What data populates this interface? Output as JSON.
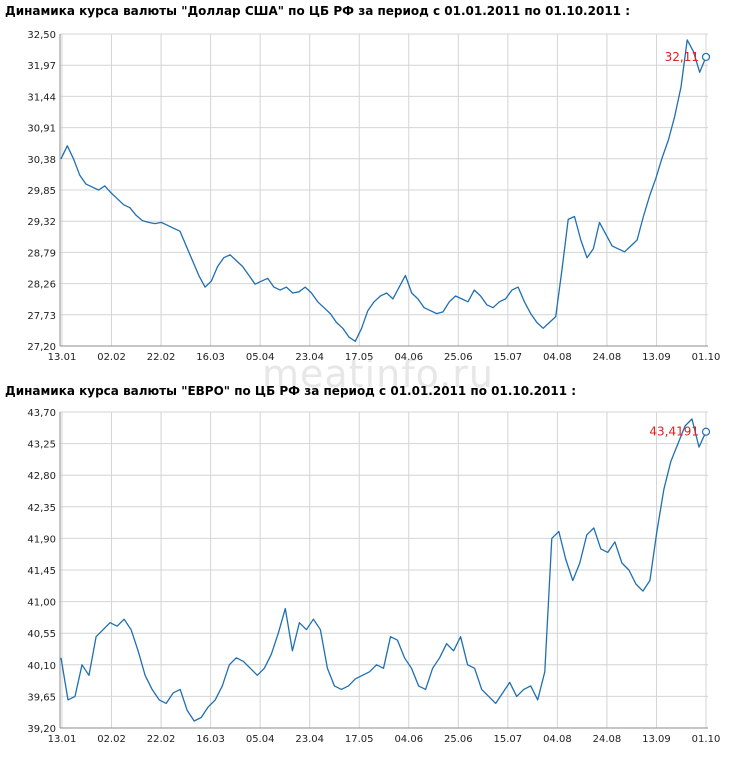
{
  "watermark": "meatinfo.ru",
  "colors": {
    "line": "#1f6fb2",
    "grid": "#d4d4d4",
    "axis": "#8c8c8c",
    "label": "#e02020"
  },
  "chart_data": [
    {
      "type": "line",
      "title": "Динамика курса валюты \"Доллар США\" по ЦБ РФ за период с 01.01.2011 по 01.10.2011 :",
      "xlabel": "",
      "ylabel": "",
      "x_ticks": [
        "13.01",
        "02.02",
        "22.02",
        "16.03",
        "05.04",
        "23.04",
        "17.05",
        "04.06",
        "25.06",
        "15.07",
        "04.08",
        "24.08",
        "13.09",
        "01.10"
      ],
      "y_ticks": [
        "27,20",
        "27,73",
        "28,26",
        "28,79",
        "29,32",
        "29,85",
        "30,38",
        "30,91",
        "31,44",
        "31,97",
        "32,50"
      ],
      "ylim": [
        27.2,
        32.5
      ],
      "grid": true,
      "end_label": "32,11",
      "series": [
        {
          "values": [
            30.38,
            30.6,
            30.38,
            30.1,
            29.95,
            29.9,
            29.85,
            29.92,
            29.8,
            29.7,
            29.6,
            29.55,
            29.42,
            29.33,
            29.3,
            29.28,
            29.3,
            29.25,
            29.2,
            29.15,
            28.9,
            28.65,
            28.4,
            28.2,
            28.3,
            28.55,
            28.7,
            28.75,
            28.65,
            28.55,
            28.4,
            28.25,
            28.3,
            28.35,
            28.2,
            28.15,
            28.2,
            28.1,
            28.12,
            28.2,
            28.1,
            27.95,
            27.85,
            27.75,
            27.6,
            27.5,
            27.35,
            27.28,
            27.5,
            27.8,
            27.95,
            28.05,
            28.1,
            28.0,
            28.2,
            28.4,
            28.1,
            28.0,
            27.85,
            27.8,
            27.75,
            27.78,
            27.95,
            28.05,
            28.0,
            27.95,
            28.15,
            28.05,
            27.9,
            27.85,
            27.95,
            28.0,
            28.15,
            28.2,
            27.95,
            27.75,
            27.6,
            27.5,
            27.6,
            27.7,
            28.5,
            29.35,
            29.4,
            29.0,
            28.7,
            28.85,
            29.3,
            29.1,
            28.9,
            28.85,
            28.8,
            28.9,
            29.0,
            29.4,
            29.75,
            30.05,
            30.4,
            30.7,
            31.1,
            31.6,
            32.4,
            32.2,
            31.85,
            32.11
          ]
        }
      ]
    },
    {
      "type": "line",
      "title": "Динамика курса валюты \"ЕВРО\" по ЦБ РФ за период с 01.01.2011 по 01.10.2011 :",
      "xlabel": "",
      "ylabel": "",
      "x_ticks": [
        "13.01",
        "02.02",
        "22.02",
        "16.03",
        "05.04",
        "23.04",
        "17.05",
        "04.06",
        "25.06",
        "15.07",
        "04.08",
        "24.08",
        "13.09",
        "01.10"
      ],
      "y_ticks": [
        "39,20",
        "39,65",
        "40,10",
        "40,55",
        "41,00",
        "41,45",
        "41,90",
        "42,35",
        "42,80",
        "43,25",
        "43,70"
      ],
      "ylim": [
        39.2,
        43.7
      ],
      "grid": true,
      "end_label": "43,4191",
      "series": [
        {
          "values": [
            40.2,
            39.6,
            39.65,
            40.1,
            39.95,
            40.5,
            40.6,
            40.7,
            40.65,
            40.75,
            40.6,
            40.3,
            39.95,
            39.75,
            39.6,
            39.55,
            39.7,
            39.75,
            39.45,
            39.3,
            39.35,
            39.5,
            39.6,
            39.8,
            40.1,
            40.2,
            40.15,
            40.05,
            39.95,
            40.05,
            40.25,
            40.55,
            40.9,
            40.3,
            40.7,
            40.6,
            40.75,
            40.6,
            40.05,
            39.8,
            39.75,
            39.8,
            39.9,
            39.95,
            40.0,
            40.1,
            40.05,
            40.5,
            40.45,
            40.2,
            40.05,
            39.8,
            39.75,
            40.05,
            40.2,
            40.4,
            40.3,
            40.5,
            40.1,
            40.05,
            39.75,
            39.65,
            39.55,
            39.7,
            39.85,
            39.65,
            39.75,
            39.8,
            39.6,
            40.0,
            41.9,
            42.0,
            41.6,
            41.3,
            41.55,
            41.95,
            42.05,
            41.75,
            41.7,
            41.85,
            41.55,
            41.45,
            41.25,
            41.15,
            41.3,
            42.0,
            42.6,
            43.0,
            43.25,
            43.5,
            43.6,
            43.2,
            43.4191
          ]
        }
      ]
    }
  ]
}
